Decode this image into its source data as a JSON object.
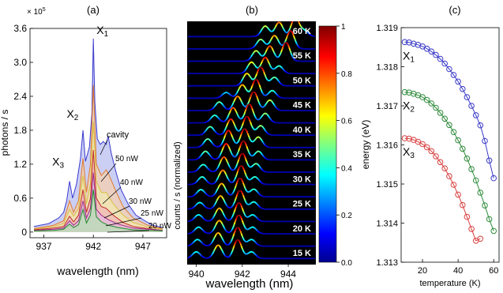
{
  "chart_data": [
    {
      "panel": "(a)",
      "type": "area",
      "ylabel": "photons / s",
      "xlabel": "wavelength (nm)",
      "y_scale_label": "× 10",
      "y_scale_exp": "5",
      "xlim": [
        935.6,
        949.4
      ],
      "ylim": [
        -0.1,
        3.6
      ],
      "xticks": [
        937,
        942,
        947
      ],
      "yticks": [
        "0",
        "0.6",
        "1.2",
        "1.8",
        "2.4",
        "3.0",
        "3.6"
      ],
      "peak_labels": [
        {
          "name": "X",
          "sub": "1",
          "x": 942.0,
          "y": 3.42
        },
        {
          "name": "X",
          "sub": "2",
          "x": 940.9,
          "y": 1.83
        },
        {
          "name": "X",
          "sub": "3",
          "x": 939.6,
          "y": 0.98
        }
      ],
      "annotations": [
        "cavity",
        "50 nW",
        "40 nW",
        "30 nW",
        "25 nW",
        "20 nW"
      ],
      "series": [
        {
          "name": "cavity",
          "color": "#3a3acf",
          "fill": "#b9bff0",
          "x": [
            936.0,
            937.5,
            938.5,
            939.0,
            939.3,
            939.6,
            939.9,
            940.3,
            940.7,
            940.95,
            941.2,
            941.6,
            941.85,
            942.0,
            942.15,
            942.4,
            942.7,
            943.0,
            943.3,
            943.5,
            943.8,
            944.3,
            944.8,
            945.5,
            946.3,
            947.2,
            948.0,
            949.0
          ],
          "y": [
            0.1,
            0.15,
            0.25,
            0.35,
            0.55,
            0.9,
            0.6,
            0.85,
            1.3,
            1.8,
            1.25,
            1.5,
            2.1,
            3.42,
            2.3,
            1.65,
            1.55,
            1.6,
            1.55,
            1.7,
            1.4,
            1.05,
            0.75,
            0.5,
            0.3,
            0.2,
            0.12,
            0.08
          ]
        },
        {
          "name": "50 nW",
          "color": "#e07a2a",
          "fill": "#f6d0b0",
          "x": [
            936.0,
            938.0,
            939.0,
            939.6,
            940.0,
            940.5,
            940.95,
            941.3,
            941.7,
            942.0,
            942.3,
            942.8,
            943.3,
            943.6,
            944.2,
            945.0,
            946.0,
            947.5,
            949.0
          ],
          "y": [
            0.06,
            0.12,
            0.2,
            0.55,
            0.35,
            0.55,
            1.3,
            0.7,
            1.2,
            2.6,
            1.2,
            1.0,
            1.1,
            1.0,
            0.75,
            0.45,
            0.25,
            0.12,
            0.06
          ]
        },
        {
          "name": "40 nW",
          "color": "#d8c040",
          "fill": "#f2e8b0",
          "x": [
            936.0,
            938.0,
            939.0,
            939.6,
            940.0,
            940.5,
            940.95,
            941.3,
            941.7,
            942.0,
            942.3,
            942.8,
            943.3,
            944.0,
            945.0,
            946.0,
            947.5,
            949.0
          ],
          "y": [
            0.05,
            0.1,
            0.15,
            0.4,
            0.28,
            0.42,
            1.0,
            0.5,
            0.85,
            1.95,
            0.9,
            0.7,
            0.7,
            0.5,
            0.3,
            0.17,
            0.09,
            0.05
          ]
        },
        {
          "name": "30 nW",
          "color": "#c02a2a",
          "fill": "#f2b8b8",
          "x": [
            936.0,
            938.0,
            939.0,
            939.6,
            940.0,
            940.5,
            940.95,
            941.3,
            941.7,
            942.0,
            942.3,
            942.8,
            943.3,
            944.0,
            945.0,
            946.0,
            947.5,
            949.0
          ],
          "y": [
            0.04,
            0.07,
            0.1,
            0.28,
            0.18,
            0.3,
            0.75,
            0.35,
            0.6,
            1.45,
            0.6,
            0.45,
            0.42,
            0.3,
            0.17,
            0.1,
            0.06,
            0.03
          ]
        },
        {
          "name": "25 nW",
          "color": "#9a2a8a",
          "fill": "#e4b8de",
          "x": [
            936.0,
            938.0,
            939.0,
            939.6,
            940.0,
            940.5,
            940.95,
            941.3,
            941.7,
            942.0,
            942.3,
            942.8,
            943.5,
            944.5,
            946.0,
            949.0
          ],
          "y": [
            0.03,
            0.05,
            0.07,
            0.2,
            0.12,
            0.2,
            0.55,
            0.25,
            0.42,
            1.05,
            0.4,
            0.3,
            0.22,
            0.14,
            0.07,
            0.03
          ]
        },
        {
          "name": "20 nW",
          "color": "#1f8a2a",
          "fill": "#b6e0b6",
          "x": [
            936.0,
            938.0,
            939.0,
            939.6,
            940.0,
            940.5,
            940.95,
            941.3,
            941.7,
            942.0,
            942.3,
            942.8,
            943.5,
            944.5,
            946.0,
            949.0
          ],
          "y": [
            0.02,
            0.03,
            0.05,
            0.14,
            0.08,
            0.13,
            0.4,
            0.16,
            0.3,
            0.75,
            0.27,
            0.18,
            0.12,
            0.08,
            0.04,
            0.02
          ]
        }
      ]
    },
    {
      "panel": "(b)",
      "type": "heatmap",
      "ylabel": "counts / s (normalized)",
      "xlabel": "wavelength (nm)",
      "xlim": [
        939.6,
        945.2
      ],
      "xticks": [
        940,
        942,
        944
      ],
      "colorbar_ticks": [
        "1",
        "0.8",
        "0.6",
        "0.4",
        "0.2",
        "0.0"
      ],
      "colorbar_range": [
        0,
        1
      ],
      "temperature_labels": [
        "60 K",
        "55 K",
        "50 K",
        "45 K",
        "40 K",
        "35 K",
        "30 K",
        "25 K",
        "20 K",
        "15 K"
      ],
      "traces": [
        {
          "T": 60,
          "peaks": [
            [
              943.0,
              0.55
            ],
            [
              943.6,
              0.75
            ],
            [
              944.3,
              1.0
            ],
            [
              944.7,
              0.3
            ]
          ]
        },
        {
          "T": 57.5,
          "peaks": [
            [
              942.8,
              0.5
            ],
            [
              943.4,
              0.7
            ],
            [
              944.1,
              0.95
            ]
          ]
        },
        {
          "T": 55,
          "peaks": [
            [
              942.6,
              0.55
            ],
            [
              943.2,
              0.8
            ],
            [
              943.9,
              1.0
            ]
          ]
        },
        {
          "T": 52.5,
          "peaks": [
            [
              942.4,
              0.6
            ],
            [
              943.0,
              0.85
            ],
            [
              943.6,
              0.4
            ]
          ]
        },
        {
          "T": 50,
          "peaks": [
            [
              942.2,
              0.65
            ],
            [
              942.8,
              1.0
            ],
            [
              943.4,
              0.45
            ]
          ]
        },
        {
          "T": 47.5,
          "peaks": [
            [
              941.3,
              0.3
            ],
            [
              942.0,
              0.7
            ],
            [
              942.6,
              1.0
            ],
            [
              943.3,
              0.4
            ]
          ]
        },
        {
          "T": 45,
          "peaks": [
            [
              941.0,
              0.45
            ],
            [
              941.8,
              0.75
            ],
            [
              942.5,
              1.0
            ],
            [
              943.2,
              0.55
            ]
          ]
        },
        {
          "T": 42.5,
          "peaks": [
            [
              940.8,
              0.4
            ],
            [
              941.6,
              0.8
            ],
            [
              942.3,
              1.0
            ],
            [
              943.0,
              0.5
            ]
          ]
        },
        {
          "T": 40,
          "peaks": [
            [
              940.6,
              0.45
            ],
            [
              941.5,
              0.85
            ],
            [
              942.2,
              1.0
            ],
            [
              942.8,
              0.5
            ]
          ]
        },
        {
          "T": 37.5,
          "peaks": [
            [
              940.5,
              0.45
            ],
            [
              941.4,
              0.9
            ],
            [
              942.1,
              1.0
            ],
            [
              942.7,
              0.55
            ]
          ]
        },
        {
          "T": 35,
          "peaks": [
            [
              940.4,
              0.45
            ],
            [
              941.3,
              0.85
            ],
            [
              942.05,
              1.0
            ],
            [
              942.7,
              0.45
            ]
          ]
        },
        {
          "T": 32.5,
          "peaks": [
            [
              940.3,
              0.4
            ],
            [
              941.2,
              0.8
            ],
            [
              942.0,
              1.0
            ],
            [
              942.6,
              0.45
            ]
          ]
        },
        {
          "T": 30,
          "peaks": [
            [
              940.25,
              0.4
            ],
            [
              941.15,
              0.75
            ],
            [
              941.95,
              1.0
            ],
            [
              942.55,
              0.4
            ]
          ]
        },
        {
          "T": 27.5,
          "peaks": [
            [
              940.2,
              0.38
            ],
            [
              941.1,
              0.7
            ],
            [
              941.9,
              1.0
            ],
            [
              942.5,
              0.4
            ]
          ]
        },
        {
          "T": 25,
          "peaks": [
            [
              940.15,
              0.35
            ],
            [
              941.05,
              0.7
            ],
            [
              941.9,
              1.0
            ],
            [
              942.5,
              0.38
            ]
          ]
        },
        {
          "T": 22.5,
          "peaks": [
            [
              940.1,
              0.35
            ],
            [
              941.0,
              0.7
            ],
            [
              941.85,
              1.0
            ],
            [
              942.45,
              0.35
            ]
          ]
        },
        {
          "T": 20,
          "peaks": [
            [
              940.1,
              0.35
            ],
            [
              941.0,
              0.7
            ],
            [
              941.85,
              1.0
            ],
            [
              942.45,
              0.35
            ]
          ]
        },
        {
          "T": 17.5,
          "peaks": [
            [
              940.05,
              0.35
            ],
            [
              940.95,
              0.7
            ],
            [
              941.8,
              1.0
            ],
            [
              942.4,
              0.35
            ]
          ]
        },
        {
          "T": 15,
          "peaks": [
            [
              940.0,
              0.35
            ],
            [
              940.95,
              0.7
            ],
            [
              941.8,
              1.0
            ],
            [
              942.4,
              0.35
            ]
          ]
        }
      ]
    },
    {
      "panel": "(c)",
      "type": "scatter",
      "ylabel": "energy (eV)",
      "xlabel": "temperature (K)",
      "xlim": [
        8,
        63
      ],
      "ylim": [
        1.313,
        1.319
      ],
      "xticks": [
        20,
        40,
        60
      ],
      "yticks": [
        "1.313",
        "1.314",
        "1.315",
        "1.316",
        "1.317",
        "1.318",
        "1.319"
      ],
      "series": [
        {
          "name": "X",
          "sub": "1",
          "color": "#3a3ac8",
          "x": [
            10,
            12.5,
            15,
            17.5,
            20,
            22.5,
            25,
            27.5,
            30,
            32.5,
            35,
            37.5,
            40,
            42.5,
            45,
            47.5,
            50,
            52.5,
            55,
            57.5,
            60
          ],
          "y": [
            1.31863,
            1.31862,
            1.31859,
            1.31856,
            1.31852,
            1.31846,
            1.31839,
            1.3183,
            1.3182,
            1.31808,
            1.31794,
            1.31779,
            1.31762,
            1.31743,
            1.31722,
            1.317,
            1.31676,
            1.3165,
            1.3161,
            1.3156,
            1.31515
          ]
        },
        {
          "name": "X",
          "sub": "2",
          "color": "#2e8b3a",
          "x": [
            10,
            12.5,
            15,
            17.5,
            20,
            22.5,
            25,
            27.5,
            30,
            32.5,
            35,
            37.5,
            40,
            42.5,
            45,
            47.5,
            50,
            52.5,
            55,
            57.5,
            60
          ],
          "y": [
            1.31735,
            1.31734,
            1.31731,
            1.31727,
            1.31722,
            1.31715,
            1.31706,
            1.31695,
            1.31682,
            1.31667,
            1.31651,
            1.31633,
            1.31612,
            1.3159,
            1.31565,
            1.31538,
            1.31509,
            1.31478,
            1.31445,
            1.3141,
            1.3138
          ]
        },
        {
          "name": "X",
          "sub": "3",
          "color": "#d84040",
          "x": [
            10,
            12.5,
            15,
            17.5,
            20,
            22.5,
            25,
            27.5,
            30,
            32.5,
            35,
            37.5,
            40,
            42.5,
            45,
            47.5,
            50,
            52.5
          ],
          "y": [
            1.31617,
            1.31616,
            1.31613,
            1.31608,
            1.31602,
            1.31594,
            1.31584,
            1.31571,
            1.31556,
            1.3154,
            1.3152,
            1.31498,
            1.31473,
            1.31446,
            1.31416,
            1.31385,
            1.31355,
            1.3136
          ]
        }
      ]
    }
  ]
}
